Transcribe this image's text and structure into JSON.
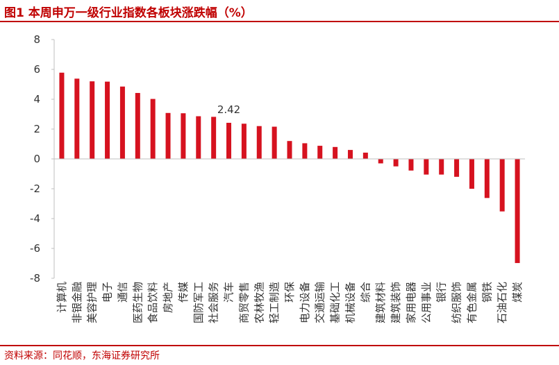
{
  "header": {
    "title": "图1  本周申万一级行业指数各板块涨跌幅（%）"
  },
  "footer": {
    "source": "资料来源：同花顺，东海证券研究所"
  },
  "colors": {
    "bar": "#d6121f",
    "accent": "#c00000",
    "axis": "#bfbfbf"
  },
  "chart_data": {
    "type": "bar",
    "title": "本周申万一级行业指数各板块涨跌幅（%）",
    "xlabel": "",
    "ylabel": "",
    "ylim": [
      -8,
      8
    ],
    "yticks": [
      8,
      6,
      4,
      2,
      0,
      -2,
      -4,
      -6,
      -8
    ],
    "grid": false,
    "legend": "none",
    "categories": [
      "计算机",
      "非银金融",
      "美容护理",
      "电子",
      "通信",
      "医药生物",
      "食品饮料",
      "房地产",
      "传媒",
      "国防军工",
      "社会服务",
      "汽车",
      "商贸零售",
      "农林牧渔",
      "轻工制造",
      "环保",
      "电力设备",
      "交通运输",
      "基础化工",
      "机械设备",
      "综合",
      "建筑材料",
      "建筑装饰",
      "家用电器",
      "公用事业",
      "银行",
      "纺织服饰",
      "有色金属",
      "钢铁",
      "石油石化",
      "煤炭"
    ],
    "values": [
      5.78,
      5.38,
      5.2,
      5.18,
      4.85,
      4.42,
      4.02,
      3.08,
      3.06,
      2.86,
      2.82,
      2.42,
      2.36,
      2.2,
      2.16,
      1.2,
      1.05,
      0.88,
      0.8,
      0.6,
      0.42,
      -0.3,
      -0.5,
      -0.78,
      -1.05,
      -1.05,
      -1.2,
      -2.0,
      -2.62,
      -3.52,
      -6.98
    ],
    "data_labels": [
      {
        "category": "汽车",
        "text": "2.42"
      }
    ]
  }
}
